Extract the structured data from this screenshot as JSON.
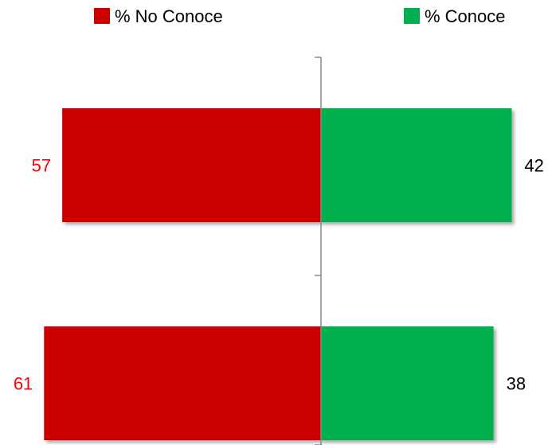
{
  "chart_data": {
    "type": "bar",
    "orientation": "diverging-horizontal",
    "categories": [
      "",
      ""
    ],
    "series": [
      {
        "name": "% No Conoce",
        "values": [
          57,
          61
        ],
        "color": "#CC0000",
        "label_color": "#FF0000"
      },
      {
        "name": "% Conoce",
        "values": [
          42,
          38
        ],
        "color": "#00B050",
        "label_color": "#000000"
      }
    ],
    "legend_position": "top",
    "grid": false,
    "xlim": [
      -61,
      42
    ]
  }
}
